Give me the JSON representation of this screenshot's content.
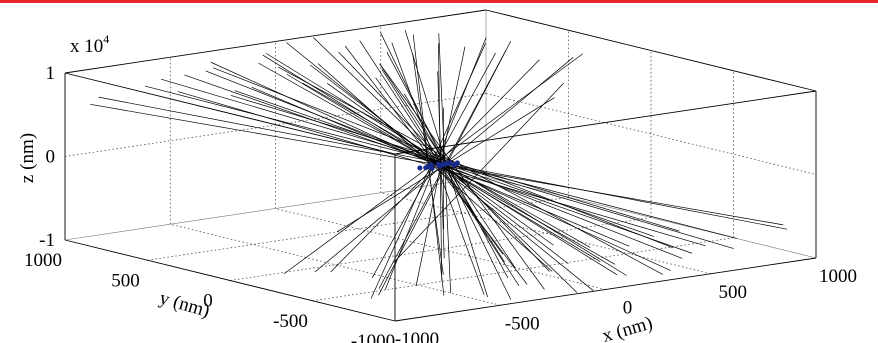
{
  "accent_color": "#e8262a",
  "chart_data": {
    "type": "line",
    "title": "",
    "xlabel": "x (nm)",
    "ylabel": "y (nm)",
    "zlabel": "z (nm)",
    "z_multiplier_prefix": "x 10",
    "z_multiplier_exponent": "4",
    "xlim": [
      -1000,
      1000
    ],
    "ylim": [
      -1000,
      1000
    ],
    "zlim": [
      -10000,
      10000
    ],
    "x_ticks": [
      -1000,
      -500,
      0,
      500,
      1000
    ],
    "y_ticks": [
      -1000,
      -500,
      0,
      500,
      1000
    ],
    "z_ticks": [
      -1,
      0,
      1
    ],
    "x_tick_labels": [
      "-1000",
      "-500",
      "0",
      "500",
      "1000"
    ],
    "y_tick_labels": [
      "-1000",
      "-500",
      "0",
      "500",
      "1000"
    ],
    "z_tick_labels": [
      "-1",
      "0",
      "1"
    ],
    "grid": true,
    "line_color": "#000000",
    "center_marker_color": "#1a2a8c",
    "trajectories": [
      {
        "start": [
          -120,
          -980,
          -10000
        ],
        "end": [
          180,
          1000,
          9800
        ]
      },
      {
        "start": [
          350,
          -900,
          -10000
        ],
        "end": [
          -300,
          600,
          10000
        ]
      },
      {
        "start": [
          -450,
          -1000,
          -9500
        ],
        "end": [
          420,
          900,
          10000
        ]
      },
      {
        "start": [
          600,
          -700,
          -10000
        ],
        "end": [
          -520,
          760,
          9600
        ]
      },
      {
        "start": [
          -800,
          -600,
          -10000
        ],
        "end": [
          700,
          620,
          9000
        ]
      },
      {
        "start": [
          100,
          -1000,
          -8700
        ],
        "end": [
          -60,
          980,
          8900
        ]
      },
      {
        "start": [
          900,
          -300,
          -9800
        ],
        "end": [
          -760,
          300,
          9800
        ]
      },
      {
        "start": [
          -300,
          -400,
          -10000
        ],
        "end": [
          260,
          500,
          10000
        ]
      },
      {
        "start": [
          450,
          -950,
          -7600
        ],
        "end": [
          -480,
          940,
          8100
        ]
      },
      {
        "start": [
          -650,
          -850,
          -9000
        ],
        "end": [
          560,
          880,
          9300
        ]
      },
      {
        "start": [
          200,
          -520,
          -10000
        ],
        "end": [
          -180,
          560,
          10000
        ]
      },
      {
        "start": [
          -900,
          -200,
          -8600
        ],
        "end": [
          880,
          260,
          8800
        ]
      },
      {
        "start": [
          750,
          -820,
          -8800
        ],
        "end": [
          -700,
          800,
          9100
        ]
      },
      {
        "start": [
          -200,
          -780,
          -9700
        ],
        "end": [
          190,
          820,
          9600
        ]
      },
      {
        "start": [
          520,
          -480,
          -9300
        ],
        "end": [
          -560,
          430,
          9400
        ]
      },
      {
        "start": [
          -560,
          -300,
          -9900
        ],
        "end": [
          520,
          330,
          9900
        ]
      },
      {
        "start": [
          30,
          -350,
          -10000
        ],
        "end": [
          -20,
          330,
          10000
        ]
      },
      {
        "start": [
          -380,
          -960,
          -8300
        ],
        "end": [
          400,
          1000,
          8600
        ]
      },
      {
        "start": [
          820,
          -560,
          -10000
        ],
        "end": [
          -840,
          520,
          9500
        ]
      },
      {
        "start": [
          -720,
          -980,
          -7800
        ],
        "end": [
          760,
          980,
          8200
        ]
      },
      {
        "start": [
          280,
          -700,
          -9500
        ],
        "end": [
          -300,
          720,
          9900
        ]
      },
      {
        "start": [
          -100,
          -150,
          -10000
        ],
        "end": [
          120,
          170,
          10000
        ]
      },
      {
        "start": [
          640,
          -980,
          -6400
        ],
        "end": [
          -620,
          1000,
          7000
        ]
      },
      {
        "start": [
          -950,
          -450,
          -7000
        ],
        "end": [
          960,
          420,
          7300
        ]
      },
      {
        "start": [
          380,
          -200,
          -10000
        ],
        "end": [
          -350,
          240,
          10000
        ]
      },
      {
        "start": [
          -480,
          -620,
          -9000
        ],
        "end": [
          500,
          650,
          9600
        ]
      },
      {
        "start": [
          150,
          -880,
          -9400
        ],
        "end": [
          -170,
          860,
          9700
        ]
      },
      {
        "start": [
          -250,
          -980,
          -7000
        ],
        "end": [
          300,
          1000,
          7600
        ]
      },
      {
        "start": [
          980,
          -850,
          -7200
        ],
        "end": [
          -950,
          860,
          7600
        ]
      },
      {
        "start": [
          -600,
          -100,
          -10000
        ],
        "end": [
          580,
          140,
          9800
        ]
      },
      {
        "start": [
          60,
          -600,
          -10000
        ],
        "end": [
          -80,
          640,
          9400
        ]
      },
      {
        "start": [
          700,
          -400,
          -9200
        ],
        "end": [
          -680,
          380,
          9700
        ]
      },
      {
        "start": [
          -850,
          -750,
          -8000
        ],
        "end": [
          820,
          770,
          8500
        ]
      },
      {
        "start": [
          420,
          -860,
          -10000
        ],
        "end": [
          -440,
          830,
          10000
        ]
      },
      {
        "start": [
          -50,
          -990,
          -10000
        ],
        "end": [
          20,
          960,
          10000
        ]
      },
      {
        "start": [
          -300,
          -100,
          -10000
        ],
        "end": [
          350,
          -300,
          10000
        ]
      },
      {
        "start": [
          250,
          300,
          -10000
        ],
        "end": [
          -300,
          -400,
          10000
        ]
      },
      {
        "start": [
          -180,
          -860,
          -10000
        ],
        "end": [
          260,
          700,
          7800
        ]
      },
      {
        "start": [
          540,
          -720,
          -8400
        ],
        "end": [
          -500,
          740,
          10000
        ]
      },
      {
        "start": [
          -700,
          -520,
          -9600
        ],
        "end": [
          680,
          470,
          9000
        ]
      },
      {
        "start": [
          -1000,
          -900,
          -7400
        ],
        "end": [
          1000,
          850,
          7000
        ]
      },
      {
        "start": [
          100,
          -250,
          -9800
        ],
        "end": [
          -120,
          240,
          9800
        ]
      },
      {
        "start": [
          860,
          -980,
          -5600
        ],
        "end": [
          -880,
          1000,
          5800
        ]
      },
      {
        "start": [
          -420,
          -800,
          -10000
        ],
        "end": [
          380,
          780,
          9500
        ]
      },
      {
        "start": [
          320,
          -560,
          -10000
        ],
        "end": [
          -260,
          600,
          9000
        ]
      },
      {
        "start": [
          -900,
          -1000,
          -6200
        ],
        "end": [
          900,
          1000,
          6000
        ]
      },
      {
        "start": [
          0,
          -450,
          -10000
        ],
        "end": [
          40,
          420,
          10000
        ]
      },
      {
        "start": [
          -150,
          -600,
          -10000
        ],
        "end": [
          200,
          580,
          10000
        ]
      },
      {
        "start": [
          460,
          -320,
          -10000
        ],
        "end": [
          -420,
          300,
          10000
        ]
      },
      {
        "start": [
          -560,
          -1000,
          -8800
        ],
        "end": [
          600,
          980,
          9200
        ]
      },
      {
        "start": [
          -100,
          500,
          -10000
        ],
        "end": [
          150,
          -500,
          10000
        ]
      },
      {
        "start": [
          300,
          100,
          -10000
        ],
        "end": [
          -250,
          -100,
          10000
        ]
      }
    ],
    "center_points": [
      [
        -70,
        0,
        0
      ],
      [
        -40,
        20,
        0
      ],
      [
        -10,
        -10,
        0
      ],
      [
        20,
        10,
        0
      ],
      [
        50,
        -20,
        0
      ],
      [
        80,
        0,
        0
      ],
      [
        -60,
        -25,
        0
      ],
      [
        10,
        25,
        0
      ],
      [
        40,
        15,
        0
      ],
      [
        -20,
        30,
        0
      ],
      [
        60,
        20,
        0
      ],
      [
        -90,
        10,
        0
      ]
    ]
  }
}
